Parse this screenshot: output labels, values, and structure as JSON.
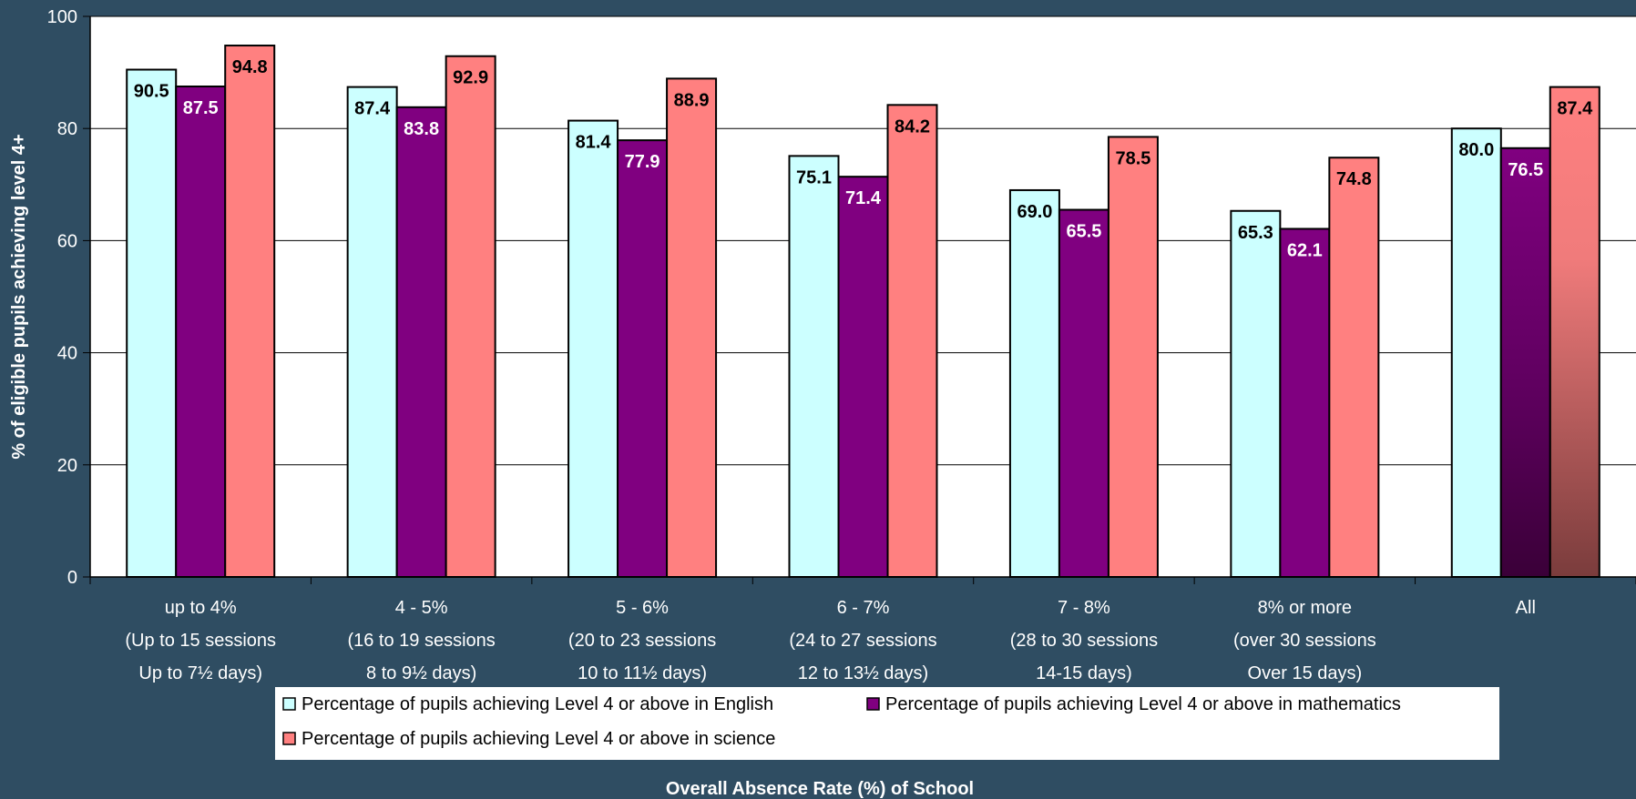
{
  "chart_data": {
    "type": "bar",
    "title": "",
    "xlabel": "Overall Absence Rate (%) of School",
    "ylabel": "% of eligible pupils achieving level 4+",
    "ylim": [
      0,
      100
    ],
    "yticks": [
      0,
      20,
      40,
      60,
      80,
      100
    ],
    "grid": true,
    "legend_position": "bottom",
    "categories": [
      [
        "up to 4%",
        "(Up to 15 sessions",
        "Up to 7½ days)"
      ],
      [
        "4 - 5%",
        "(16 to 19 sessions",
        "8 to 9½ days)"
      ],
      [
        "5 - 6%",
        "(20 to 23 sessions",
        "10 to 11½ days)"
      ],
      [
        "6 - 7%",
        "(24 to 27 sessions",
        "12 to 13½ days)"
      ],
      [
        "7 - 8%",
        "(28 to 30 sessions",
        "14-15 days)"
      ],
      [
        "8% or more",
        "(over 30 sessions",
        "Over 15  days)"
      ],
      [
        "All"
      ]
    ],
    "series": [
      {
        "name": "Percentage of pupils achieving Level 4 or above in English",
        "color": "#ccffff",
        "label_color": "#000000",
        "values": [
          90.5,
          87.4,
          81.4,
          75.1,
          69.0,
          65.3,
          80.0
        ],
        "labels": [
          "90.5",
          "87.4",
          "81.4",
          "75.1",
          "69.0",
          "65.3",
          "80.0"
        ]
      },
      {
        "name": "Percentage of pupils achieving Level 4 or above in mathematics",
        "color": "#800080",
        "label_color": "#ffffff",
        "values": [
          87.5,
          83.8,
          77.9,
          71.4,
          65.5,
          62.1,
          76.5
        ],
        "labels": [
          "87.5",
          "83.8",
          "77.9",
          "71.4",
          "65.5",
          "62.1",
          "76.5"
        ]
      },
      {
        "name": "Percentage of pupils achieving Level 4 or above in science",
        "color": "#ff8080",
        "label_color": "#000000",
        "values": [
          94.8,
          92.9,
          88.9,
          84.2,
          78.5,
          74.8,
          87.4
        ],
        "labels": [
          "94.8",
          "92.9",
          "88.9",
          "84.2",
          "78.5",
          "74.8",
          "87.4"
        ]
      }
    ],
    "gradient_category": "All"
  }
}
